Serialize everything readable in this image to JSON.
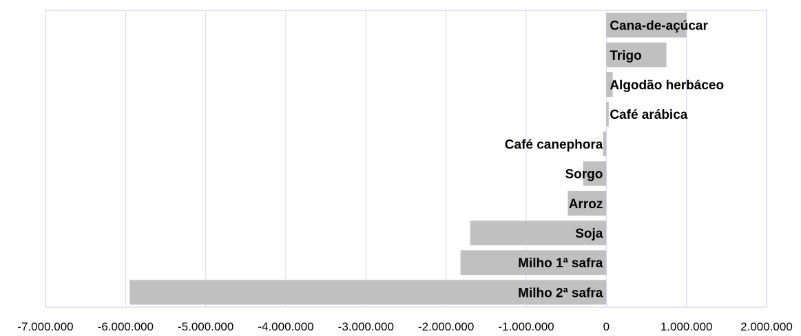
{
  "chart_data": {
    "type": "bar",
    "orientation": "horizontal",
    "categories": [
      "Cana-de-açúcar",
      "Trigo",
      "Algodão herbáceo",
      "Café arábica",
      "Café canephora",
      "Sorgo",
      "Arroz",
      "Soja",
      "Milho 1ª safra",
      "Milho 2ª safra"
    ],
    "values": [
      1000000,
      750000,
      80000,
      30000,
      -40000,
      -290000,
      -480000,
      -1700000,
      -1820000,
      -5950000
    ],
    "xlim": [
      -7000000,
      2000000
    ],
    "xticks": [
      -7000000,
      -6000000,
      -5000000,
      -4000000,
      -3000000,
      -2000000,
      -1000000,
      0,
      1000000,
      2000000
    ],
    "xtick_labels": [
      "-7.000.000",
      "-6.000.000",
      "-5.000.000",
      "-4.000.000",
      "-3.000.000",
      "-2.000.000",
      "-1.000.000",
      "0",
      "1.000.000",
      "2.000.000"
    ],
    "title": "",
    "xlabel": "",
    "ylabel": "",
    "grid": "vertical",
    "legend": "none",
    "bar_color": "#c0c0c0",
    "grid_color": "#d8d8f0",
    "frame_color": "#c8c8e8"
  }
}
